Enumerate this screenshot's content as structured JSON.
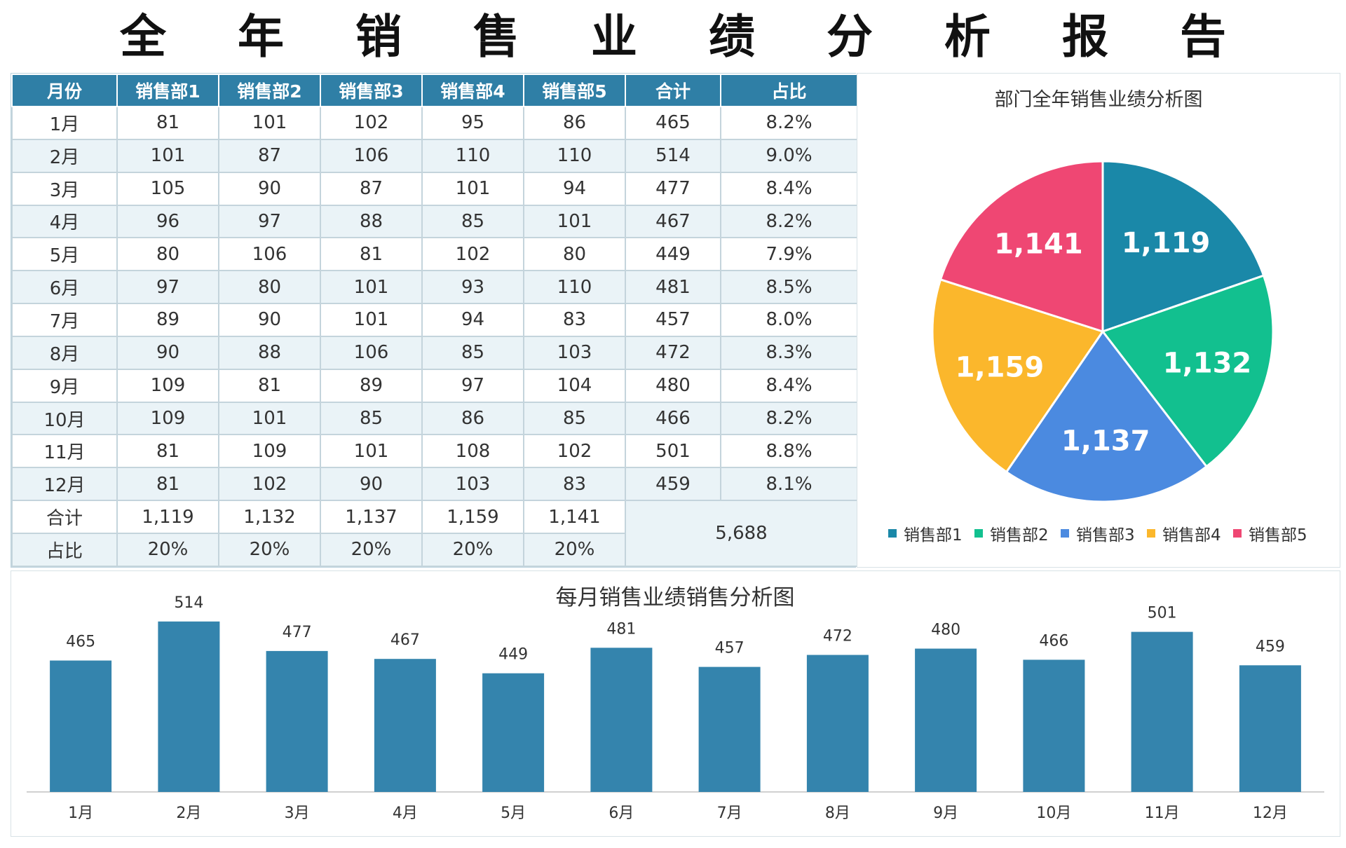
{
  "report_title": "全年销售业绩分析报告",
  "colors": {
    "header": "#2f7fa6",
    "bar": "#3484ad",
    "pie": [
      "#1a88a8",
      "#12c08f",
      "#4b8ae0",
      "#fbb72c",
      "#ef4773"
    ]
  },
  "table": {
    "headers": [
      "月份",
      "销售部1",
      "销售部2",
      "销售部3",
      "销售部4",
      "销售部5",
      "合计",
      "占比"
    ],
    "rows": [
      [
        "1月",
        "81",
        "101",
        "102",
        "95",
        "86",
        "465",
        "8.2%"
      ],
      [
        "2月",
        "101",
        "87",
        "106",
        "110",
        "110",
        "514",
        "9.0%"
      ],
      [
        "3月",
        "105",
        "90",
        "87",
        "101",
        "94",
        "477",
        "8.4%"
      ],
      [
        "4月",
        "96",
        "97",
        "88",
        "85",
        "101",
        "467",
        "8.2%"
      ],
      [
        "5月",
        "80",
        "106",
        "81",
        "102",
        "80",
        "449",
        "7.9%"
      ],
      [
        "6月",
        "97",
        "80",
        "101",
        "93",
        "110",
        "481",
        "8.5%"
      ],
      [
        "7月",
        "89",
        "90",
        "101",
        "94",
        "83",
        "457",
        "8.0%"
      ],
      [
        "8月",
        "90",
        "88",
        "106",
        "85",
        "103",
        "472",
        "8.3%"
      ],
      [
        "9月",
        "109",
        "81",
        "89",
        "97",
        "104",
        "480",
        "8.4%"
      ],
      [
        "10月",
        "109",
        "101",
        "85",
        "86",
        "85",
        "466",
        "8.2%"
      ],
      [
        "11月",
        "81",
        "109",
        "101",
        "108",
        "102",
        "501",
        "8.8%"
      ],
      [
        "12月",
        "81",
        "102",
        "90",
        "103",
        "83",
        "459",
        "8.1%"
      ]
    ],
    "total_row": [
      "合计",
      "1,119",
      "1,132",
      "1,137",
      "1,159",
      "1,141"
    ],
    "share_row": [
      "占比",
      "20%",
      "20%",
      "20%",
      "20%",
      "20%"
    ],
    "grand_total": "5,688"
  },
  "chart_data": [
    {
      "type": "pie",
      "title": "部门全年销售业绩分析图",
      "labels": [
        "销售部1",
        "销售部2",
        "销售部3",
        "销售部4",
        "销售部5"
      ],
      "values": [
        1119,
        1132,
        1137,
        1159,
        1141
      ],
      "value_labels": [
        "1,119",
        "1,132",
        "1,137",
        "1,159",
        "1,141"
      ],
      "legend_position": "bottom"
    },
    {
      "type": "bar",
      "title": "每月销售业绩销售分析图",
      "categories": [
        "1月",
        "2月",
        "3月",
        "4月",
        "5月",
        "6月",
        "7月",
        "8月",
        "9月",
        "10月",
        "11月",
        "12月"
      ],
      "values": [
        465,
        514,
        477,
        467,
        449,
        481,
        457,
        472,
        480,
        466,
        501,
        459
      ],
      "ylim": [
        300,
        520
      ],
      "grid": false
    }
  ]
}
